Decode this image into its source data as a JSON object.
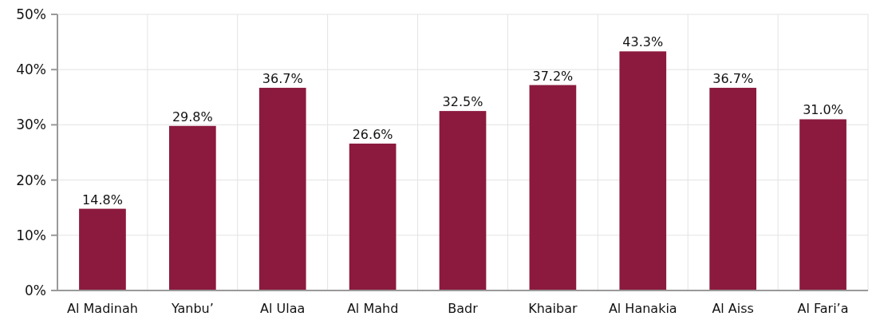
{
  "chart_data": {
    "type": "bar",
    "categories": [
      "Al Madinah",
      "Yanbu’",
      "Al Ulaa",
      "Al Mahd",
      "Badr",
      "Khaibar",
      "Al Hanakia",
      "Al Aiss",
      "Al Fari’a"
    ],
    "values": [
      14.8,
      29.8,
      36.7,
      26.6,
      32.5,
      37.2,
      43.3,
      36.7,
      31.0
    ],
    "value_labels": [
      "14.8%",
      "29.8%",
      "36.7%",
      "26.6%",
      "32.5%",
      "37.2%",
      "43.3%",
      "36.7%",
      "31.0%"
    ],
    "color": "#8b1a3e",
    "ylim": [
      0,
      50
    ],
    "yticks": [
      {
        "value": 0,
        "label": "0%"
      },
      {
        "value": 10,
        "label": "10%"
      },
      {
        "value": 20,
        "label": "20%"
      },
      {
        "value": 30,
        "label": "30%"
      },
      {
        "value": 40,
        "label": "40%"
      },
      {
        "value": 50,
        "label": "50%"
      }
    ],
    "grid": true
  }
}
